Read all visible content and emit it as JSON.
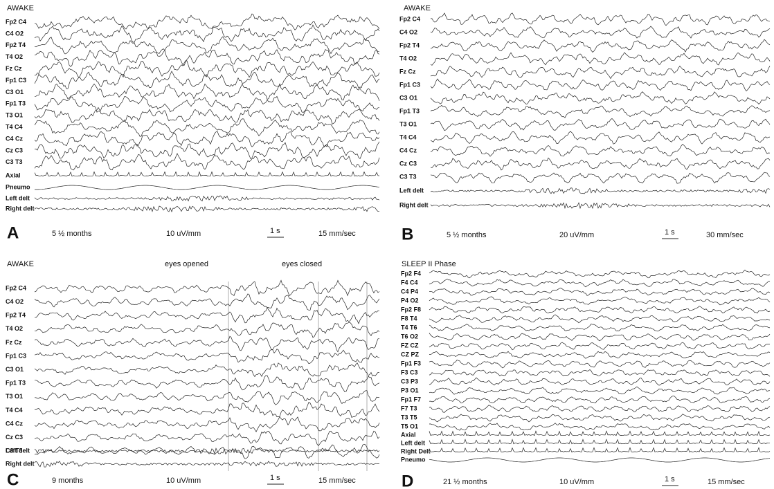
{
  "panels": [
    {
      "letter": "A",
      "headers": [
        "AWAKE"
      ],
      "channels": [
        "Fp2 C4",
        "C4 O2",
        "Fp2 T4",
        "T4 O2",
        "Fz Cz",
        "Fp1 C3",
        "C3 O1",
        "Fp1 T3",
        "T3 O1",
        "T4 C4",
        "C4 Cz",
        "Cz C3",
        "C3 T3",
        "Axial",
        "Pneumo",
        "Left delt",
        "Right delt"
      ],
      "age": "5 ½ months",
      "sensitivity": "10 uV/mm",
      "time_scale": "1 s",
      "speed": "15 mm/sec"
    },
    {
      "letter": "B",
      "headers": [
        "AWAKE"
      ],
      "channels": [
        "Fp2 C4",
        "C4 O2",
        "Fp2 T4",
        "T4 O2",
        "Fz Cz",
        "Fp1 C3",
        "C3 O1",
        "Fp1 T3",
        "T3 O1",
        "T4 C4",
        "C4 Cz",
        "Cz C3",
        "C3 T3",
        "Left delt",
        "Right delt"
      ],
      "age": "5 ½ months",
      "sensitivity": "20 uV/mm",
      "time_scale": "1 s",
      "speed": "30 mm/sec"
    },
    {
      "letter": "C",
      "headers": [
        "AWAKE",
        "eyes opened",
        "eyes closed"
      ],
      "channels": [
        "Fp2 C4",
        "C4 O2",
        "Fp2 T4",
        "T4 O2",
        "Fz Cz",
        "Fp1 C3",
        "C3 O1",
        "Fp1 T3",
        "T3 O1",
        "T4 C4",
        "C4 Cz",
        "Cz C3",
        "C3 T3",
        "Left delt",
        "Right delt"
      ],
      "age": "9 months",
      "sensitivity": "10 uV/mm",
      "time_scale": "1 s",
      "speed": "15 mm/sec"
    },
    {
      "letter": "D",
      "headers": [
        "SLEEP II Phase"
      ],
      "channels": [
        "Fp2 F4",
        "F4 C4",
        "C4 P4",
        "P4 O2",
        "Fp2 F8",
        "F8 T4",
        "T4 T6",
        "T6 O2",
        "FZ CZ",
        "CZ PZ",
        "Fp1 F3",
        "F3 C3",
        "C3 P3",
        "P3 O1",
        "Fp1 F7",
        "F7 T3",
        "T3 T5",
        "T5 O1",
        "Axial",
        "Left delt",
        "Right Delt",
        "Pneumo"
      ],
      "age": "21 ½ months",
      "sensitivity": "10 uV/mm",
      "time_scale": "1 s",
      "speed": "15 mm/sec"
    }
  ]
}
